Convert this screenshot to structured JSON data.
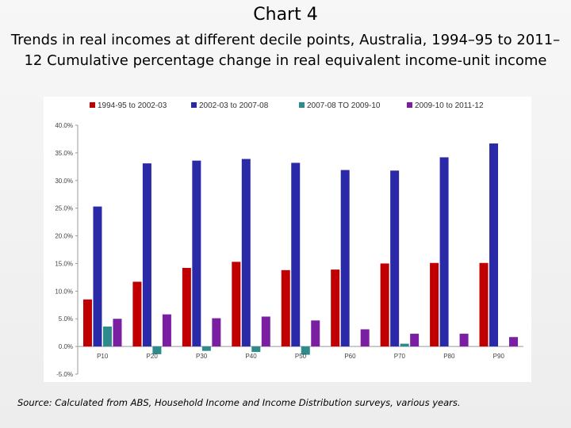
{
  "slide": {
    "title": "Chart 4",
    "subtitle": "Trends in real incomes at different decile points, Australia, 1994–95 to 2011–12 Cumulative percentage change in real equivalent income-unit income",
    "source": "Source: Calculated from ABS, Household Income and Income Distribution surveys, various years."
  },
  "chart_data": {
    "type": "bar",
    "categories": [
      "P10",
      "P20",
      "P30",
      "P40",
      "P50",
      "P60",
      "P70",
      "P80",
      "P90"
    ],
    "ylim": [
      -5,
      40
    ],
    "yticks": [
      40,
      35,
      30,
      25,
      20,
      15,
      10,
      5,
      0,
      -5
    ],
    "ytick_labels": [
      "40.0%",
      "35.0%",
      "30.0%",
      "25.0%",
      "20.0%",
      "15.0%",
      "10.0%",
      "5.0%",
      "0.0%",
      "-5.0%"
    ],
    "grid": false,
    "legend_position": "top",
    "series": [
      {
        "name": "1994-95 to 2002-03",
        "color": "#c00000",
        "values": [
          8.5,
          11.7,
          14.2,
          15.3,
          13.8,
          13.9,
          15.0,
          15.1,
          15.1
        ]
      },
      {
        "name": "2002-03 to 2007-08",
        "color": "#2a2aa8",
        "values": [
          25.3,
          33.1,
          33.6,
          33.9,
          33.2,
          31.9,
          31.8,
          34.2,
          36.7
        ]
      },
      {
        "name": "2007-08 TO 2009-10",
        "color": "#2e8b8b",
        "values": [
          3.6,
          -1.4,
          -0.8,
          -1.0,
          -1.5,
          0.0,
          0.5,
          0.0,
          0.0
        ]
      },
      {
        "name": "2009-10 to 2011-12",
        "color": "#7a1fa2",
        "values": [
          5.0,
          5.8,
          5.1,
          5.4,
          4.7,
          3.1,
          2.3,
          2.3,
          1.7
        ]
      }
    ]
  }
}
